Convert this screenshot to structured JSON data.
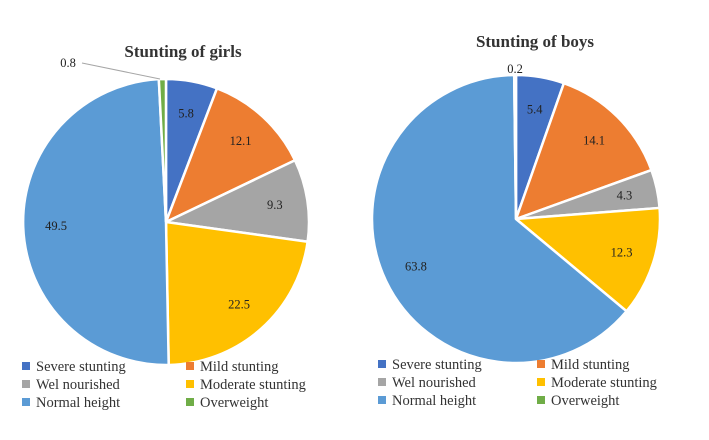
{
  "chart_data": [
    {
      "type": "pie",
      "title": "Stunting of girls",
      "categories": [
        "Severe stunting",
        "Mild stunting",
        "Wel nourished",
        "Moderate stunting",
        "Normal height",
        "Overweight"
      ],
      "values": [
        5.8,
        12.1,
        9.3,
        22.5,
        49.5,
        0.8
      ],
      "value_labels": [
        "5.8",
        "12.1",
        "9.3",
        "22.5",
        "49.5",
        "0.8"
      ],
      "colors": [
        "#4472c4",
        "#ed7d31",
        "#a5a5a5",
        "#ffc000",
        "#5b9bd5",
        "#70ad47"
      ],
      "legend": "bottom"
    },
    {
      "type": "pie",
      "title": "Stunting of boys",
      "categories": [
        "Severe stunting",
        "Mild stunting",
        "Wel nourished",
        "Moderate stunting",
        "Normal height",
        "Overweight"
      ],
      "values": [
        5.4,
        14.1,
        4.3,
        12.3,
        63.8,
        0.2
      ],
      "value_labels": [
        "5.4",
        "14.1",
        "4.3",
        "12.3",
        "63.8",
        "0.2"
      ],
      "colors": [
        "#4472c4",
        "#ed7d31",
        "#a5a5a5",
        "#ffc000",
        "#5b9bd5",
        "#70ad47"
      ],
      "legend": "bottom"
    }
  ]
}
